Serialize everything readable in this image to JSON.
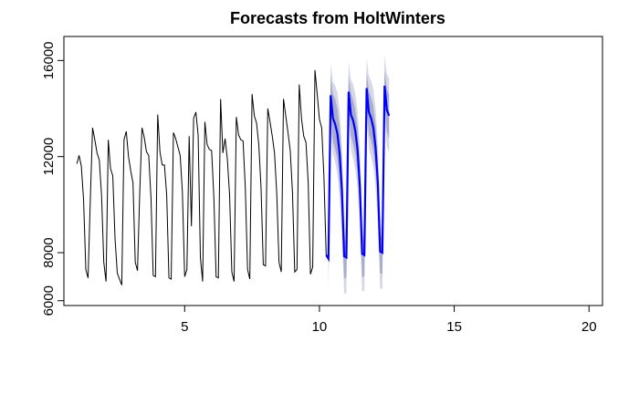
{
  "chart_data": {
    "type": "line",
    "title": "Forecasts from HoltWinters",
    "xlabel": "",
    "ylabel": "",
    "xlim": [
      0.52,
      20.5
    ],
    "ylim": [
      5800,
      17000
    ],
    "x_ticks": [
      5,
      10,
      15,
      20
    ],
    "y_ticks": [
      6000,
      8000,
      12000,
      16000
    ],
    "frequency": 12,
    "start": 1,
    "colors": {
      "observed": "#000000",
      "forecast": "#0000ff",
      "band_80": "#a9acca",
      "band_95": "#d6d8e8"
    },
    "series": [
      {
        "values": [
          11700,
          12050,
          11600,
          10200,
          7300,
          6950,
          10200,
          13200,
          12700,
          12150,
          11850,
          10400,
          7600,
          6800,
          12700,
          11500,
          11200,
          8600,
          7150,
          6900,
          6650,
          12700,
          13050,
          12000,
          11400,
          10900,
          7600,
          7250,
          10500,
          13200,
          12800,
          12200,
          12050,
          10300,
          7050,
          7000,
          13750,
          12200,
          11650,
          11650,
          10400,
          6950,
          6900,
          13000,
          12750,
          12400,
          12050,
          10500,
          7000,
          7300,
          12850,
          9100,
          13600,
          13850,
          12900,
          7800,
          6800,
          13450,
          12500,
          12300,
          12250,
          10300,
          7000,
          6950,
          14400,
          12150,
          12750,
          11900,
          10400,
          7200,
          6800,
          13650,
          12900,
          12700,
          12650,
          10700,
          7300,
          6900,
          14600,
          13700,
          13400,
          12500,
          10700,
          7500,
          7450,
          14000,
          13450,
          12850,
          12150,
          10450,
          7600,
          7200,
          14400,
          13700,
          13000,
          12250,
          10500,
          7200,
          7300,
          15000,
          13600,
          12850,
          12600,
          10900,
          7100,
          7400,
          15600,
          14600,
          13550,
          13200,
          11150,
          7900
        ]
      },
      {
        "values": [
          7750,
          14550,
          13600,
          13350,
          12950,
          12100,
          10600,
          7850,
          7800,
          14700,
          13750,
          13500,
          13050,
          12250,
          10750,
          7950,
          7900,
          14850,
          13850,
          13600,
          13200,
          12350,
          10900,
          8050,
          8000,
          14950,
          13950,
          13700
        ]
      }
    ],
    "bands": [
      {
        "level": "95%",
        "upper": [
          8050,
          15900,
          15100,
          14950,
          14650,
          13900,
          12450,
          9700,
          8300,
          15950,
          15200,
          15000,
          14600,
          13850,
          12400,
          9600,
          8500,
          16100,
          15350,
          15150,
          14800,
          14000,
          12550,
          9650,
          8700,
          16250,
          15450,
          15250
        ],
        "lower": [
          6200,
          13200,
          12100,
          11750,
          11250,
          10300,
          8750,
          6300,
          6300,
          13450,
          12300,
          11900,
          11450,
          10650,
          9050,
          6400,
          6400,
          13550,
          12350,
          11950,
          11550,
          10700,
          9200,
          6500,
          6500,
          13650,
          12450,
          12150
        ]
      },
      {
        "level": "80%",
        "upper": [
          7950,
          15350,
          14600,
          14400,
          14000,
          13250,
          11750,
          8950,
          8050,
          15350,
          14650,
          14350,
          13950,
          13200,
          11650,
          8900,
          8250,
          15500,
          14750,
          14450,
          14100,
          13300,
          11800,
          8950,
          8450,
          15600,
          14850,
          14550
        ],
        "lower": [
          7000,
          13700,
          12650,
          12300,
          11900,
          10950,
          9450,
          6900,
          7000,
          13950,
          12850,
          12500,
          12100,
          11250,
          9700,
          7000,
          7000,
          14100,
          12950,
          12650,
          12200,
          11400,
          9950,
          7150,
          7100,
          14200,
          13050,
          12750
        ]
      }
    ]
  }
}
